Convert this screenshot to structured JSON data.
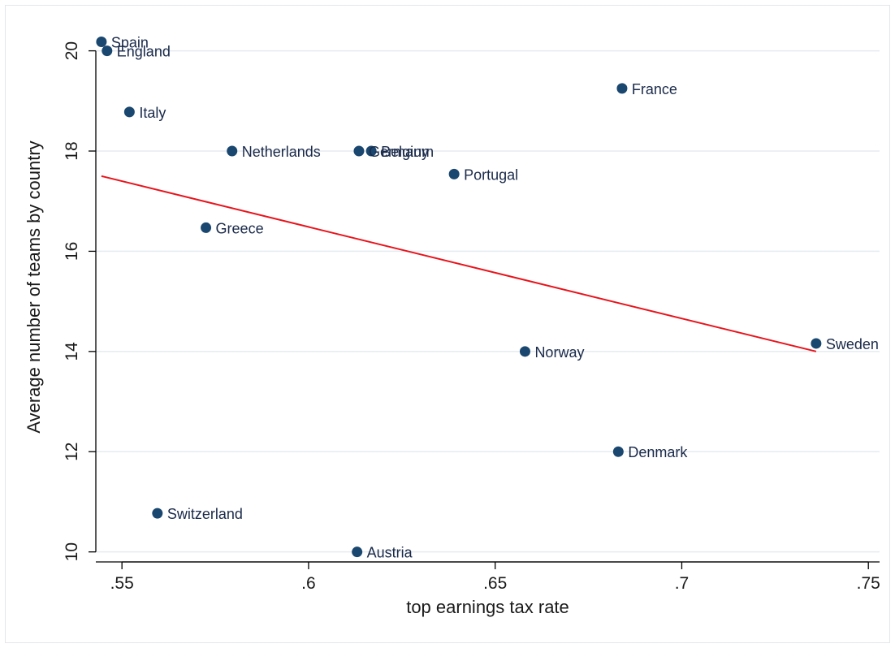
{
  "chart_data": {
    "type": "scatter",
    "title": "",
    "xlabel": "top earnings tax rate",
    "ylabel": "Average number of teams by country",
    "xlim": [
      0.543,
      0.753
    ],
    "ylim": [
      9.8,
      20.35
    ],
    "x_ticks": [
      0.55,
      0.6,
      0.65,
      0.7,
      0.75
    ],
    "x_tick_labels": [
      ".55",
      ".6",
      ".65",
      ".7",
      ".75"
    ],
    "y_ticks": [
      10,
      12,
      14,
      16,
      18,
      20
    ],
    "y_tick_labels": [
      "10",
      "12",
      "14",
      "16",
      "18",
      "20"
    ],
    "grid": "horizontal",
    "legend": "none",
    "points": [
      {
        "label": "Spain",
        "x": 0.5445,
        "y": 20.18
      },
      {
        "label": "England",
        "x": 0.546,
        "y": 20.0
      },
      {
        "label": "Italy",
        "x": 0.552,
        "y": 18.78
      },
      {
        "label": "Netherlands",
        "x": 0.5795,
        "y": 18.0
      },
      {
        "label": "Germany",
        "x": 0.6135,
        "y": 18.0
      },
      {
        "label": "Belgium",
        "x": 0.6168,
        "y": 18.0
      },
      {
        "label": "France",
        "x": 0.684,
        "y": 19.25
      },
      {
        "label": "Portugal",
        "x": 0.639,
        "y": 17.54
      },
      {
        "label": "Greece",
        "x": 0.5725,
        "y": 16.47
      },
      {
        "label": "Norway",
        "x": 0.658,
        "y": 14.0
      },
      {
        "label": "Sweden",
        "x": 0.736,
        "y": 14.16
      },
      {
        "label": "Denmark",
        "x": 0.683,
        "y": 12.0
      },
      {
        "label": "Switzerland",
        "x": 0.5595,
        "y": 10.77
      },
      {
        "label": "Austria",
        "x": 0.613,
        "y": 10.0
      }
    ],
    "fit_line": {
      "x": [
        0.5445,
        0.736
      ],
      "y": [
        17.5,
        14.0
      ]
    },
    "colors": {
      "marker": "#1a476f",
      "fit_line": "#e8141c",
      "grid": "#e5ebf0",
      "axis": "#000000"
    }
  }
}
